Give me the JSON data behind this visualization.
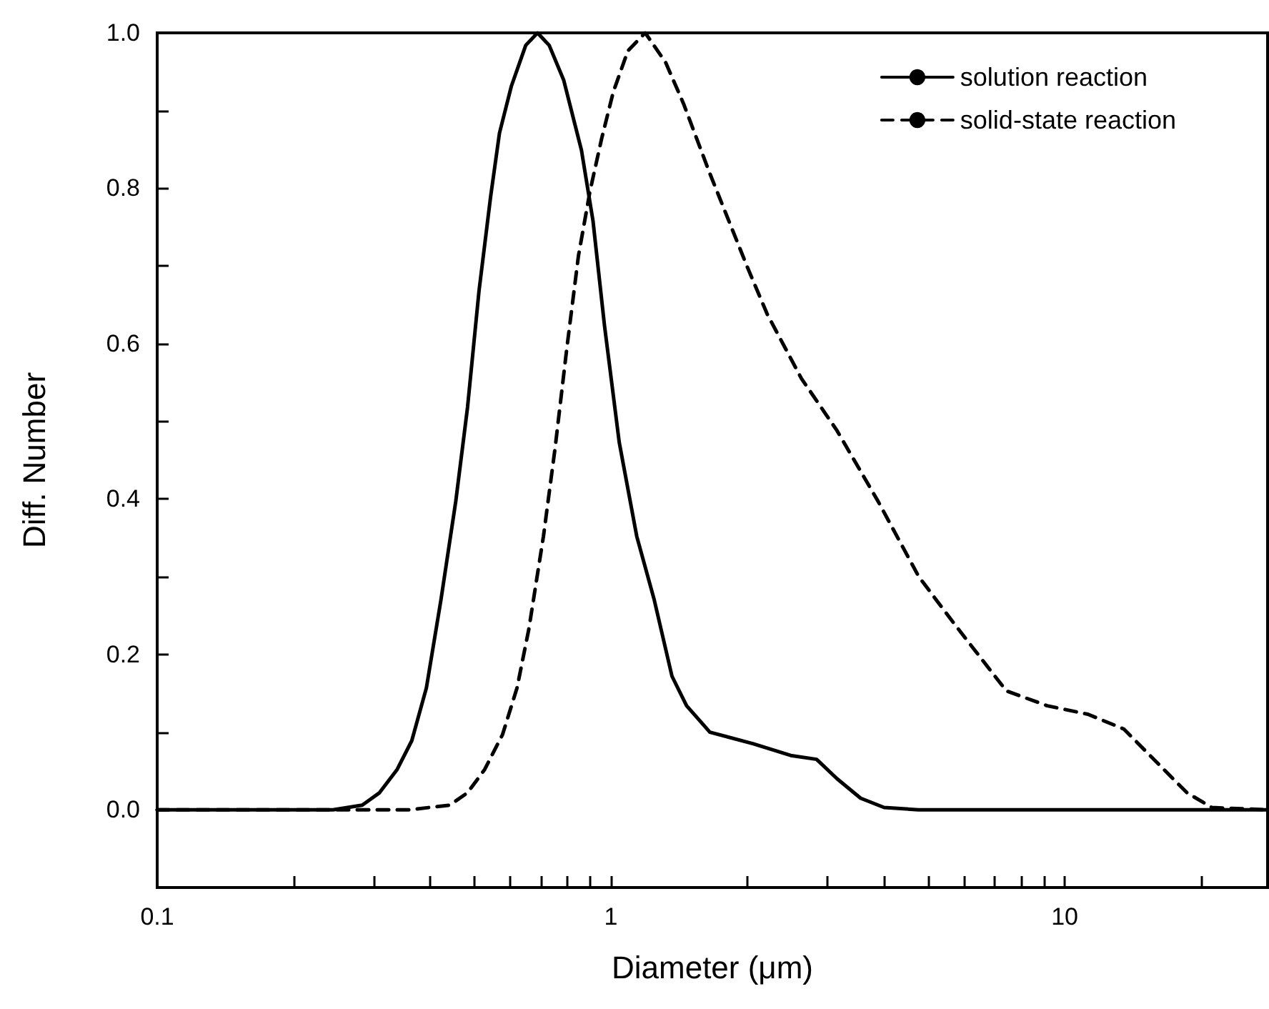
{
  "chart_data": {
    "type": "line",
    "xlabel": "Diameter (μm)",
    "ylabel": "Diff. Number",
    "log": "x",
    "marker": "none",
    "grid": false,
    "legend": "top right",
    "xlim": [
      0.1,
      28
    ],
    "xticks": [
      0.1,
      {
        "value": 0.2,
        "label": null
      },
      {
        "value": 0.3,
        "label": null
      },
      {
        "value": 0.4,
        "label": null
      },
      {
        "value": 0.5,
        "label": null
      },
      {
        "value": 0.6,
        "label": null
      },
      {
        "value": 0.7,
        "label": null
      },
      {
        "value": 0.8,
        "label": null
      },
      {
        "value": 0.9,
        "label": null
      },
      1,
      {
        "value": 2,
        "label": null
      },
      {
        "value": 3,
        "label": null
      },
      {
        "value": 4,
        "label": null
      },
      {
        "value": 5,
        "label": null
      },
      {
        "value": 6,
        "label": null
      },
      {
        "value": 7,
        "label": null
      },
      {
        "value": 8,
        "label": null
      },
      {
        "value": 9,
        "label": null
      },
      10,
      {
        "value": 20,
        "label": null
      }
    ],
    "ylim": [
      -0.1,
      1.0
    ],
    "yticks": [
      {
        "value": 0,
        "label": "0.0"
      },
      {
        "value": 0.1,
        "label": null
      },
      0.2,
      {
        "value": 0.3,
        "label": null
      },
      0.4,
      {
        "value": 0.5,
        "label": null
      },
      0.6,
      {
        "value": 0.7,
        "label": null
      },
      0.8,
      {
        "value": 0.9,
        "label": null
      },
      {
        "value": 1,
        "label": "1.0"
      }
    ],
    "series": [
      {
        "name": "solution reaction",
        "color": "#000000",
        "line_style": "solid",
        "x": [
          0.1,
          0.244,
          0.283,
          0.309,
          0.338,
          0.364,
          0.392,
          0.422,
          0.455,
          0.483,
          0.512,
          0.543,
          0.568,
          0.603,
          0.649,
          0.689,
          0.731,
          0.787,
          0.861,
          0.913,
          0.968,
          1.043,
          1.14,
          1.246,
          1.363,
          1.468,
          1.652,
          2.06,
          2.49,
          2.84,
          3.15,
          3.55,
          4.0,
          4.76,
          28
        ],
        "values": [
          0,
          0,
          0.006,
          0.022,
          0.052,
          0.089,
          0.157,
          0.27,
          0.397,
          0.518,
          0.668,
          0.789,
          0.871,
          0.931,
          0.984,
          1.0,
          0.984,
          0.939,
          0.849,
          0.758,
          0.623,
          0.473,
          0.352,
          0.27,
          0.172,
          0.134,
          0.1,
          0.085,
          0.07,
          0.065,
          0.04,
          0.015,
          0.003,
          0,
          0
        ]
      },
      {
        "name": "solid-state reaction",
        "color": "#000000",
        "line_style": "dashed",
        "x": [
          0.1,
          0.359,
          0.441,
          0.483,
          0.527,
          0.577,
          0.621,
          0.659,
          0.71,
          0.753,
          0.799,
          0.848,
          0.899,
          0.954,
          1.012,
          1.09,
          1.19,
          1.32,
          1.445,
          1.652,
          2.0,
          2.21,
          2.63,
          3.15,
          3.88,
          4.77,
          5.7,
          7.44,
          9.15,
          11.25,
          13.5,
          15.6,
          18.6,
          21.1,
          28
        ],
        "values": [
          0,
          0,
          0.006,
          0.022,
          0.052,
          0.097,
          0.157,
          0.232,
          0.352,
          0.465,
          0.593,
          0.713,
          0.796,
          0.864,
          0.924,
          0.977,
          1.0,
          0.962,
          0.909,
          0.819,
          0.698,
          0.638,
          0.555,
          0.488,
          0.397,
          0.3,
          0.24,
          0.153,
          0.134,
          0.123,
          0.104,
          0.067,
          0.022,
          0.003,
          0
        ]
      }
    ]
  }
}
